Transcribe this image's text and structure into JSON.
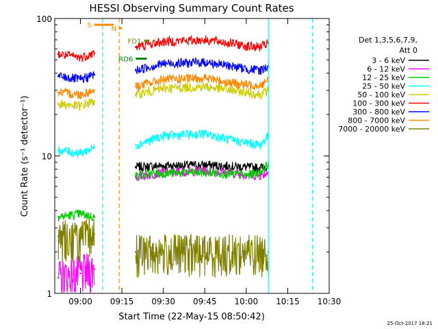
{
  "chart_data": {
    "type": "line",
    "title": "HESSI Observing Summary Count Rates",
    "xlabel": "Start Time (22-May-15 08:50:42)",
    "ylabel": "Count Rate (s⁻¹ detector⁻¹)",
    "y_scale": "log",
    "ylim": [
      1,
      100
    ],
    "xlim": [
      "08:50:42",
      "10:30:00"
    ],
    "x_ticks": [
      "09:00",
      "09:15",
      "09:30",
      "09:45",
      "10:00",
      "10:15",
      "10:30"
    ],
    "y_tick_labels": [
      "1",
      "10",
      "100"
    ],
    "legend_header": [
      "Det 1,3,5,6,7,9,",
      "Att 0"
    ],
    "legend_position": "right",
    "timestamp": "25-Oct-2017 18:21",
    "series": [
      {
        "name": "3 - 6 keV",
        "color": "#000000",
        "x": [
          "08:52",
          "09:00",
          "09:05",
          "09:10",
          "09:12",
          "09:15",
          "09:20",
          "09:30",
          "09:45",
          "09:55",
          "10:00",
          "10:05",
          "10:08",
          "10:10"
        ],
        "y": [
          null,
          null,
          null,
          null,
          null,
          null,
          8.3,
          8.5,
          8.6,
          8.4,
          8.3,
          8.2,
          8.5,
          null
        ]
      },
      {
        "name": "6 - 12 keV",
        "color": "#ff00ff",
        "x": [
          "08:52",
          "09:00",
          "09:05",
          "09:10",
          "09:12",
          "09:15",
          "09:20",
          "09:30",
          "09:45",
          "09:55",
          "10:00",
          "10:05",
          "10:08",
          "10:10"
        ],
        "y": [
          1.3,
          1.4,
          1.5,
          null,
          null,
          null,
          7.0,
          7.6,
          7.8,
          7.5,
          7.3,
          7.2,
          7.6,
          null
        ]
      },
      {
        "name": "12 - 25 keV",
        "color": "#00cc00",
        "x": [
          "08:52",
          "09:00",
          "09:05",
          "09:10",
          "09:12",
          "09:15",
          "09:20",
          "09:30",
          "09:45",
          "09:55",
          "10:00",
          "10:05",
          "10:08",
          "10:10"
        ],
        "y": [
          3.6,
          3.8,
          3.6,
          null,
          null,
          null,
          7.2,
          7.5,
          7.6,
          7.4,
          7.2,
          7.6,
          8.8,
          null
        ]
      },
      {
        "name": "25 - 50 keV",
        "color": "#00ffff",
        "x": [
          "08:52",
          "09:00",
          "09:05",
          "09:10",
          "09:12",
          "09:15",
          "09:20",
          "09:30",
          "09:45",
          "09:55",
          "10:00",
          "10:05",
          "10:08",
          "10:10"
        ],
        "y": [
          11,
          10.5,
          11.5,
          null,
          null,
          null,
          12,
          14,
          14.5,
          13,
          12.5,
          12,
          14,
          null
        ]
      },
      {
        "name": "50 - 100 keV",
        "color": "#cccc00",
        "x": [
          "08:52",
          "09:00",
          "09:05",
          "09:10",
          "09:12",
          "09:15",
          "09:20",
          "09:30",
          "09:45",
          "09:55",
          "10:00",
          "10:05",
          "10:08",
          "10:10"
        ],
        "y": [
          24,
          23,
          25,
          null,
          null,
          null,
          28,
          31,
          32,
          30,
          29,
          28,
          30,
          null
        ]
      },
      {
        "name": "100 - 300 keV",
        "color": "#ff0000",
        "x": [
          "08:52",
          "09:00",
          "09:05",
          "09:10",
          "09:12",
          "09:15",
          "09:20",
          "09:30",
          "09:45",
          "09:55",
          "10:00",
          "10:05",
          "10:08",
          "10:10"
        ],
        "y": [
          55,
          52,
          56,
          null,
          null,
          null,
          62,
          68,
          70,
          66,
          63,
          62,
          66,
          null
        ]
      },
      {
        "name": "300 - 800 keV",
        "color": "#0000ff",
        "x": [
          "08:52",
          "09:00",
          "09:05",
          "09:10",
          "09:12",
          "09:15",
          "09:20",
          "09:30",
          "09:45",
          "09:55",
          "10:00",
          "10:05",
          "10:08",
          "10:10"
        ],
        "y": [
          38,
          36,
          39,
          null,
          null,
          null,
          42,
          47,
          48,
          45,
          43,
          42,
          45,
          null
        ]
      },
      {
        "name": "800 - 7000 keV",
        "color": "#ff8800",
        "x": [
          "08:52",
          "09:00",
          "09:05",
          "09:10",
          "09:12",
          "09:15",
          "09:20",
          "09:30",
          "09:45",
          "09:55",
          "10:00",
          "10:05",
          "10:08",
          "10:10"
        ],
        "y": [
          29,
          28,
          30,
          null,
          null,
          null,
          32,
          36,
          37,
          34,
          33,
          33,
          35,
          null
        ]
      },
      {
        "name": "7000 - 20000 keV",
        "color": "#808000",
        "x": [
          "08:52",
          "09:00",
          "09:05",
          "09:10",
          "09:12",
          "09:15",
          "09:20",
          "09:30",
          "09:45",
          "09:55",
          "10:00",
          "10:05",
          "10:08",
          "10:10"
        ],
        "y": [
          2.6,
          2.5,
          2.7,
          null,
          null,
          null,
          2.0,
          2.0,
          2.0,
          2.0,
          2.0,
          2.0,
          2.0,
          null
        ]
      }
    ],
    "flag_bars": [
      {
        "label": "S",
        "color": "#ff8800",
        "x": [
          "09:05",
          "09:12"
        ],
        "y": 90
      },
      {
        "label": "N",
        "color": "#ff8800",
        "x": [
          "09:14",
          "09:15"
        ],
        "y": 85
      },
      {
        "label": "FD1",
        "color": "#808000",
        "x": [
          "09:23",
          "09:25"
        ],
        "y": 69
      },
      {
        "label": "RD6",
        "color": "#008000",
        "x": [
          "09:20",
          "09:24"
        ],
        "y": 51
      }
    ],
    "vertical_markers": [
      {
        "x": "09:08",
        "color": "#00ffff",
        "style": "dashed"
      },
      {
        "x": "09:14",
        "color": "#ff8800",
        "style": "dashed"
      },
      {
        "x": "10:08",
        "color": "#00ffff",
        "style": "solid"
      },
      {
        "x": "10:24",
        "color": "#00ffff",
        "style": "dashed"
      }
    ]
  }
}
